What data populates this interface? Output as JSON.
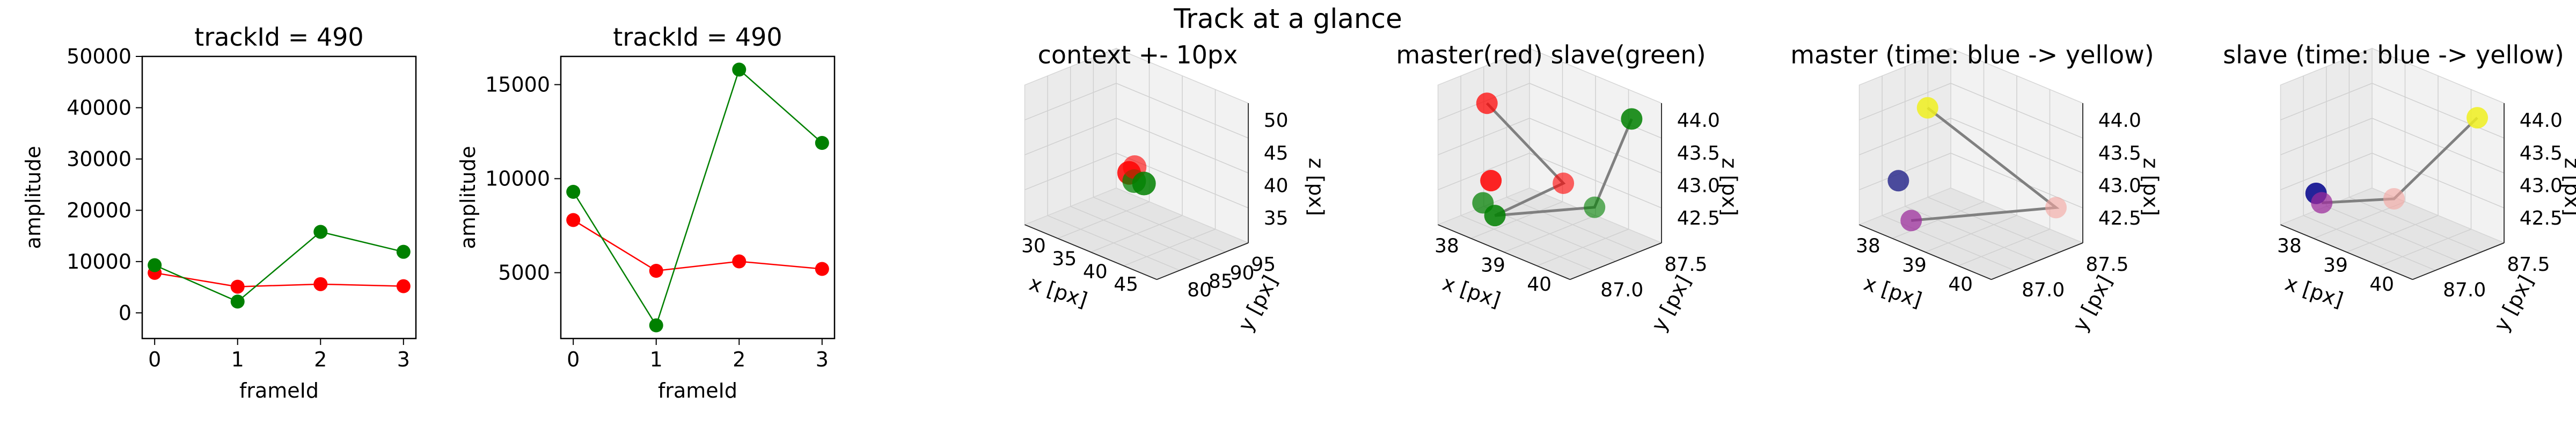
{
  "figure": {
    "suptitle": "Track at a glance"
  },
  "colors": {
    "master": "#ff0000",
    "slave": "#008000",
    "path": "#808080",
    "early": "#00008b",
    "late": "#ffff00"
  },
  "chart_data": [
    {
      "type": "line",
      "title": "trackId = 490",
      "xlabel": "frameId",
      "ylabel": "amplitude",
      "x": [
        0,
        1,
        2,
        3
      ],
      "xticks": [
        "0",
        "1",
        "2",
        "3"
      ],
      "ylim": [
        -5000,
        50000
      ],
      "yticks": [
        0,
        10000,
        20000,
        30000,
        40000,
        50000
      ],
      "ytick_labels": [
        "0",
        "10000",
        "20000",
        "30000",
        "40000",
        "50000"
      ],
      "series": [
        {
          "key": "master",
          "values": [
            7800,
            5100,
            5600,
            5200
          ]
        },
        {
          "key": "slave",
          "values": [
            9300,
            2200,
            15800,
            11900
          ]
        }
      ]
    },
    {
      "type": "line",
      "title": "trackId = 490",
      "xlabel": "frameId",
      "ylabel": "amplitude",
      "x": [
        0,
        1,
        2,
        3
      ],
      "xticks": [
        "0",
        "1",
        "2",
        "3"
      ],
      "ylim": [
        1500,
        16500
      ],
      "yticks": [
        5000,
        10000,
        15000
      ],
      "ytick_labels": [
        "5000",
        "10000",
        "15000"
      ],
      "series": [
        {
          "key": "master",
          "values": [
            7800,
            5100,
            5600,
            5200
          ]
        },
        {
          "key": "slave",
          "values": [
            9300,
            2200,
            15800,
            11900
          ]
        }
      ]
    },
    {
      "type": "scatter",
      "projection": "3d",
      "title": "context +- 10px",
      "xlabel": "x [px]",
      "ylabel": "y [px]",
      "zlabel": "z [px]",
      "xticks": [
        "30",
        "35",
        "40",
        "45"
      ],
      "yticks": [
        "80",
        "85",
        "90",
        "95"
      ],
      "zticks": [
        "35",
        "40",
        "45",
        "50"
      ],
      "points": [
        {
          "x": 38.5,
          "y": 87.3,
          "z": 43.2,
          "color": "master"
        },
        {
          "x": 39.0,
          "y": 87.6,
          "z": 42.7,
          "color": "slave"
        },
        {
          "x": 38.8,
          "y": 87.8,
          "z": 43.6,
          "color": "master"
        },
        {
          "x": 40.5,
          "y": 87.8,
          "z": 42.4,
          "color": "slave"
        }
      ]
    },
    {
      "type": "scatter",
      "projection": "3d",
      "title": "master(red) slave(green)",
      "xlabel": "x [px]",
      "ylabel": "y [px]",
      "zlabel": "z [px]",
      "xticks": [
        "38",
        "39",
        "40"
      ],
      "yticks": [
        "87.0",
        "87.5"
      ],
      "zticks": [
        "42.5",
        "43.0",
        "43.5",
        "44.0"
      ],
      "points": [
        {
          "x": 38.2,
          "y": 87.2,
          "z": 43.0,
          "color": "master"
        },
        {
          "x": 38.4,
          "y": 87.1,
          "z": 44.0,
          "color": "master"
        },
        {
          "x": 39.6,
          "y": 87.5,
          "z": 42.9,
          "color": "master"
        },
        {
          "x": 38.0,
          "y": 87.3,
          "z": 42.6,
          "color": "slave"
        },
        {
          "x": 38.6,
          "y": 87.0,
          "z": 42.5,
          "color": "slave"
        },
        {
          "x": 40.3,
          "y": 87.6,
          "z": 42.5,
          "color": "slave"
        },
        {
          "x": 40.2,
          "y": 88.0,
          "z": 44.0,
          "color": "slave"
        }
      ],
      "path": [
        [
          38.4,
          87.1,
          44.0
        ],
        [
          39.6,
          87.5,
          42.9
        ],
        [
          38.0,
          87.3,
          42.6
        ],
        [
          40.3,
          87.6,
          42.5
        ],
        [
          40.2,
          88.0,
          44.0
        ]
      ]
    },
    {
      "type": "scatter",
      "projection": "3d",
      "title": "master (time: blue -> yellow)",
      "xlabel": "x [px]",
      "ylabel": "y [px]",
      "zlabel": "z [px]",
      "xticks": [
        "38",
        "39",
        "40"
      ],
      "yticks": [
        "87.0",
        "87.5"
      ],
      "zticks": [
        "42.5",
        "43.0",
        "43.5",
        "44.0"
      ],
      "points": [
        {
          "x": 38.3,
          "y": 87.1,
          "z": 43.0,
          "color": "#2e2e8e"
        },
        {
          "x": 38.0,
          "y": 87.2,
          "z": 42.7,
          "color": "#9b2a9b"
        },
        {
          "x": 39.7,
          "y": 87.5,
          "z": 42.9,
          "color": "#f4a5a0"
        },
        {
          "x": 38.4,
          "y": 87.2,
          "z": 44.0,
          "color": "#f0f020"
        }
      ],
      "path": [
        [
          38.0,
          87.2,
          42.7
        ],
        [
          39.7,
          87.5,
          42.9
        ],
        [
          38.4,
          87.2,
          44.0
        ]
      ]
    },
    {
      "type": "scatter",
      "projection": "3d",
      "title": "slave (time: blue -> yellow)",
      "xlabel": "x [px]",
      "ylabel": "y [px]",
      "zlabel": "z [px]",
      "xticks": [
        "38",
        "39",
        "40"
      ],
      "yticks": [
        "87.0",
        "87.5"
      ],
      "zticks": [
        "42.5",
        "43.0",
        "43.5",
        "44.0"
      ],
      "points": [
        {
          "x": 38.2,
          "y": 87.2,
          "z": 42.6,
          "color": "#00008b"
        },
        {
          "x": 37.9,
          "y": 87.3,
          "z": 42.6,
          "color": "#9b2a9b"
        },
        {
          "x": 39.9,
          "y": 87.4,
          "z": 42.4,
          "color": "#f4a5a0"
        },
        {
          "x": 40.3,
          "y": 87.9,
          "z": 44.0,
          "color": "#f0f020"
        }
      ],
      "path": [
        [
          37.9,
          87.3,
          42.6
        ],
        [
          39.9,
          87.4,
          42.4
        ],
        [
          40.3,
          87.9,
          44.0
        ]
      ]
    }
  ]
}
